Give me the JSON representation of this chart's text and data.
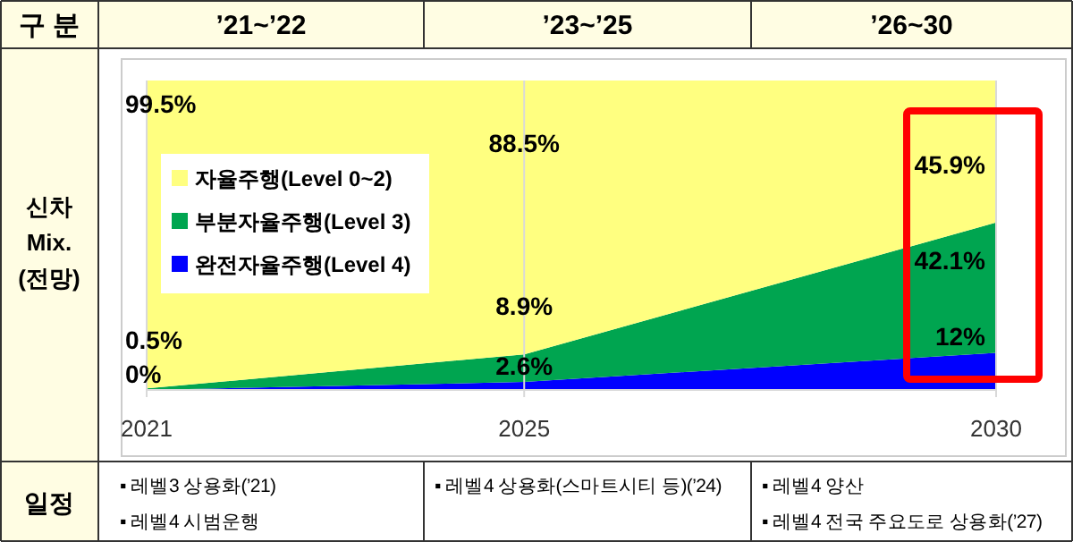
{
  "chart_data": {
    "type": "area",
    "stacked": true,
    "x": [
      2021,
      2025,
      2030
    ],
    "xlim": [
      2021,
      2030
    ],
    "xticks": [
      2021,
      2025,
      2030
    ],
    "ylim": [
      0,
      100
    ],
    "grid": "x",
    "legend": "left",
    "tick_labels": "x",
    "series": [
      {
        "name": "완전자율주행(Level 4)",
        "color": "#0000ff",
        "values": [
          0,
          2.6,
          12
        ],
        "value_labels": [
          "0%",
          "2.6%",
          "12%"
        ]
      },
      {
        "name": "부분자율주행(Level 3)",
        "color": "#00a550",
        "values": [
          0.5,
          8.9,
          42.1
        ],
        "value_labels": [
          "0.5%",
          "8.9%",
          "42.1%"
        ]
      },
      {
        "name": "자율주행(Level 0~2)",
        "color": "#ffff80",
        "values": [
          99.5,
          88.5,
          45.9
        ],
        "value_labels": [
          "99.5%",
          "88.5%",
          "45.9%"
        ]
      }
    ],
    "annotations": [
      "구 분",
      "’21~’22",
      "’23~’25",
      "’26~30",
      "신차 Mix. (전망)",
      "일정",
      "▪ 레벨3 상용화(’21)",
      "▪ 레벨4 시범운행",
      "▪ 레벨4 상용화(스마트시티 등)(’24)",
      "▪ 레벨4 양산",
      "▪ 레벨4 전국 주요도로 상용화(’27)"
    ]
  }
}
